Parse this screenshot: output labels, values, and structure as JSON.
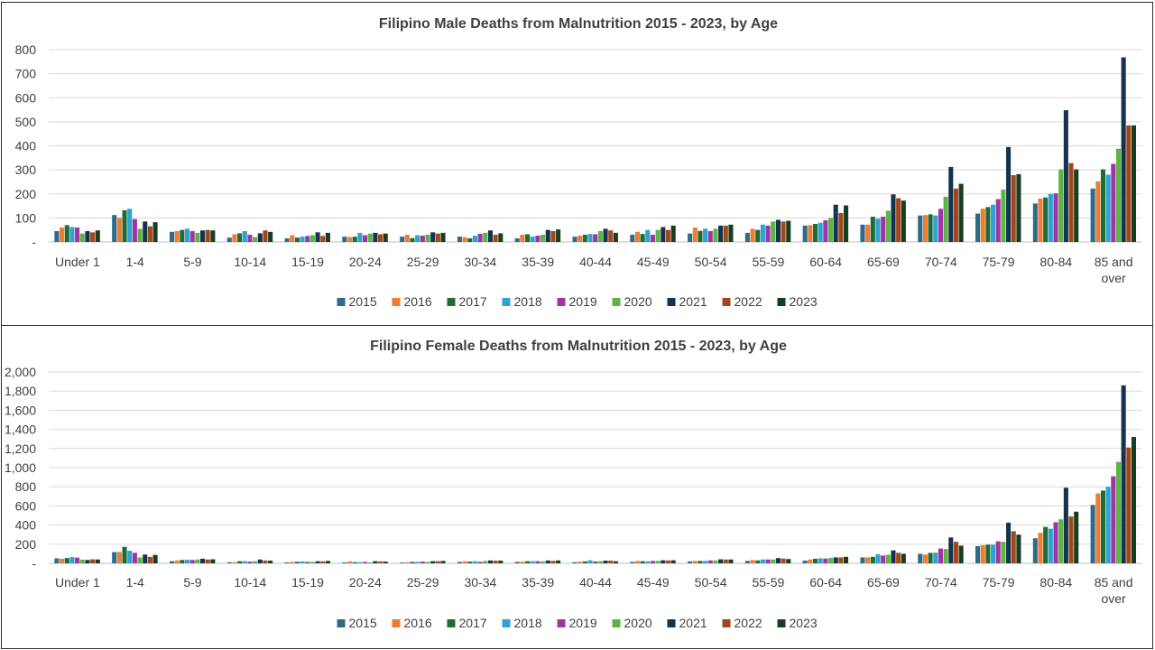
{
  "colors": {
    "2015": "#2E6A8A",
    "2016": "#ED7D31",
    "2017": "#1F6B35",
    "2018": "#2DA3D3",
    "2019": "#A034A6",
    "2020": "#5BB443",
    "2021": "#13334F",
    "2022": "#A3471B",
    "2023": "#173E20"
  },
  "chart_data": [
    {
      "type": "bar",
      "title": "Filipino Male Deaths from Malnutrition 2015 - 2023, by Age",
      "xlabel": "",
      "ylabel": "",
      "ylim": [
        0,
        800
      ],
      "yticks": [
        "-",
        "100",
        "200",
        "300",
        "400",
        "500",
        "600",
        "700",
        "800"
      ],
      "grid": true,
      "legend_position": "bottom",
      "categories": [
        "Under 1",
        "1-4",
        "5-9",
        "10-14",
        "15-19",
        "20-24",
        "25-29",
        "30-34",
        "35-39",
        "40-44",
        "45-49",
        "50-54",
        "55-59",
        "60-64",
        "65-69",
        "70-74",
        "75-79",
        "80-84",
        "85 and over"
      ],
      "series": [
        {
          "name": "2015",
          "values": [
            45,
            112,
            42,
            18,
            15,
            22,
            22,
            22,
            15,
            22,
            30,
            35,
            38,
            68,
            72,
            110,
            118,
            160,
            222
          ]
        },
        {
          "name": "2016",
          "values": [
            60,
            100,
            45,
            32,
            28,
            20,
            30,
            20,
            30,
            26,
            42,
            60,
            55,
            70,
            72,
            112,
            138,
            180,
            252
          ]
        },
        {
          "name": "2017",
          "values": [
            70,
            132,
            50,
            36,
            18,
            22,
            16,
            15,
            32,
            30,
            33,
            46,
            50,
            75,
            105,
            115,
            145,
            185,
            302
          ]
        },
        {
          "name": "2018",
          "values": [
            62,
            138,
            55,
            45,
            22,
            38,
            28,
            26,
            22,
            33,
            50,
            55,
            72,
            80,
            97,
            110,
            155,
            200,
            280
          ]
        },
        {
          "name": "2019",
          "values": [
            60,
            95,
            45,
            30,
            25,
            28,
            26,
            34,
            26,
            32,
            30,
            45,
            68,
            90,
            105,
            138,
            178,
            202,
            325
          ]
        },
        {
          "name": "2020",
          "values": [
            35,
            55,
            38,
            20,
            28,
            35,
            30,
            38,
            30,
            45,
            50,
            55,
            85,
            100,
            130,
            188,
            218,
            302,
            388
          ]
        },
        {
          "name": "2021",
          "values": [
            45,
            85,
            48,
            36,
            40,
            38,
            40,
            48,
            50,
            55,
            62,
            68,
            92,
            155,
            198,
            312,
            395,
            548,
            768
          ]
        },
        {
          "name": "2022",
          "values": [
            40,
            65,
            50,
            48,
            25,
            32,
            35,
            30,
            45,
            48,
            50,
            68,
            85,
            120,
            182,
            222,
            278,
            328,
            485
          ]
        },
        {
          "name": "2023",
          "values": [
            48,
            82,
            48,
            42,
            38,
            35,
            38,
            36,
            52,
            38,
            68,
            72,
            88,
            152,
            172,
            242,
            282,
            302,
            485
          ]
        }
      ]
    },
    {
      "type": "bar",
      "title": "Filipino Female Deaths from Malnutrition 2015 - 2023, by Age",
      "xlabel": "",
      "ylabel": "",
      "ylim": [
        0,
        2000
      ],
      "yticks": [
        "-",
        "200",
        "400",
        "600",
        "800",
        "1,000",
        "1,200",
        "1,400",
        "1,600",
        "1,800",
        "2,000"
      ],
      "grid": true,
      "legend_position": "bottom",
      "categories": [
        "Under 1",
        "1-4",
        "5-9",
        "10-14",
        "15-19",
        "20-24",
        "25-29",
        "30-34",
        "35-39",
        "40-44",
        "45-49",
        "50-54",
        "55-59",
        "60-64",
        "65-69",
        "70-74",
        "75-79",
        "80-84",
        "85 and over"
      ],
      "series": [
        {
          "name": "2015",
          "values": [
            52,
            118,
            22,
            12,
            10,
            10,
            8,
            15,
            15,
            12,
            15,
            20,
            25,
            28,
            62,
            100,
            180,
            262,
            610
          ]
        },
        {
          "name": "2016",
          "values": [
            48,
            120,
            30,
            12,
            15,
            20,
            12,
            22,
            18,
            18,
            25,
            25,
            35,
            40,
            62,
            92,
            190,
            320,
            730
          ]
        },
        {
          "name": "2017",
          "values": [
            55,
            172,
            35,
            22,
            16,
            12,
            15,
            18,
            22,
            20,
            22,
            25,
            30,
            48,
            68,
            110,
            195,
            380,
            760
          ]
        },
        {
          "name": "2018",
          "values": [
            65,
            132,
            38,
            22,
            20,
            12,
            15,
            22,
            22,
            32,
            20,
            25,
            40,
            52,
            95,
            112,
            195,
            362,
            800
          ]
        },
        {
          "name": "2019",
          "values": [
            60,
            110,
            35,
            18,
            15,
            15,
            18,
            16,
            22,
            20,
            25,
            30,
            40,
            50,
            82,
            155,
            230,
            430,
            910
          ]
        },
        {
          "name": "2020",
          "values": [
            38,
            62,
            40,
            22,
            15,
            10,
            15,
            25,
            20,
            22,
            25,
            30,
            40,
            55,
            90,
            150,
            225,
            460,
            1060
          ]
        },
        {
          "name": "2021",
          "values": [
            35,
            92,
            48,
            40,
            22,
            22,
            22,
            30,
            30,
            28,
            32,
            42,
            55,
            62,
            135,
            270,
            425,
            790,
            1860
          ]
        },
        {
          "name": "2022",
          "values": [
            42,
            68,
            40,
            30,
            20,
            20,
            22,
            28,
            25,
            28,
            30,
            40,
            50,
            62,
            110,
            225,
            335,
            490,
            1210
          ]
        },
        {
          "name": "2023",
          "values": [
            40,
            88,
            42,
            28,
            25,
            18,
            25,
            28,
            30,
            22,
            32,
            40,
            45,
            68,
            100,
            185,
            300,
            540,
            1320
          ]
        }
      ]
    }
  ]
}
